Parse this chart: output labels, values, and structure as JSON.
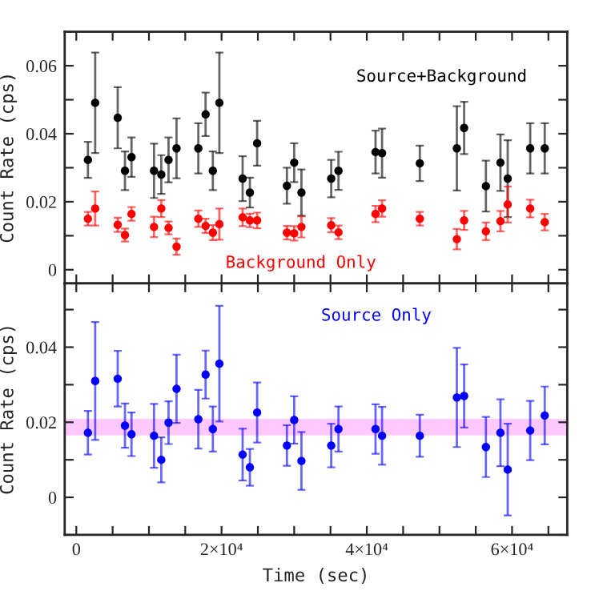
{
  "chart_data": [
    {
      "type": "scatter",
      "ylabel": "Count Rate (cps)",
      "xlim": [
        -1600,
        67600
      ],
      "ylim": [
        -0.004,
        0.07
      ],
      "x": [
        1600,
        2600,
        5700,
        6700,
        7600,
        10700,
        11700,
        12700,
        13800,
        16800,
        17800,
        18800,
        19700,
        22900,
        23900,
        24900,
        29000,
        30000,
        31000,
        35100,
        36100,
        41200,
        42100,
        47300,
        52400,
        53400,
        56400,
        58400,
        59400,
        62500,
        64500
      ],
      "xticks": [
        {
          "value": 0,
          "label": null
        },
        {
          "value": 5000,
          "label": null
        },
        {
          "value": 10000,
          "label": null
        },
        {
          "value": 15000,
          "label": null
        },
        {
          "value": 20000,
          "label": null
        },
        {
          "value": 25000,
          "label": null
        },
        {
          "value": 30000,
          "label": null
        },
        {
          "value": 35000,
          "label": null
        },
        {
          "value": 40000,
          "label": null
        },
        {
          "value": 45000,
          "label": null
        },
        {
          "value": 50000,
          "label": null
        },
        {
          "value": 55000,
          "label": null
        },
        {
          "value": 60000,
          "label": null
        },
        {
          "value": 65000,
          "label": null
        }
      ],
      "yticks": [
        0,
        {
          "value": 0.01,
          "label": null
        },
        0.02,
        {
          "value": 0.03,
          "label": null
        },
        0.04,
        {
          "value": 0.05,
          "label": null
        },
        0.06
      ],
      "tick_labels": "y",
      "marker": "circle",
      "legend": false,
      "grid": false,
      "series": [
        {
          "name": "Source+Background",
          "color": "#000000",
          "values": [
            0.0323,
            0.0491,
            0.0447,
            0.0291,
            0.0331,
            0.0291,
            0.028,
            0.0323,
            0.0357,
            0.0357,
            0.0457,
            0.0291,
            0.0491,
            0.0268,
            0.0227,
            0.0372,
            0.0247,
            0.0315,
            0.0227,
            0.0268,
            0.0291,
            0.0346,
            0.0343,
            0.0313,
            0.0357,
            0.0417,
            0.0246,
            0.0315,
            0.0268,
            0.0357,
            0.0357
          ],
          "errors": [
            0.0053,
            0.0148,
            0.009,
            0.0057,
            0.0058,
            0.008,
            0.0057,
            0.0066,
            0.0088,
            0.0074,
            0.0064,
            0.0057,
            0.0148,
            0.0066,
            0.0044,
            0.0066,
            0.0053,
            0.0057,
            0.0068,
            0.0055,
            0.0056,
            0.0063,
            0.0072,
            0.0052,
            0.0124,
            0.0077,
            0.0075,
            0.0083,
            0.0113,
            0.0074,
            0.0074
          ]
        },
        {
          "name": "Background Only",
          "color": "#ff0000",
          "values": [
            0.015,
            0.018,
            0.0132,
            0.0102,
            0.0164,
            0.0126,
            0.018,
            0.0123,
            0.0068,
            0.015,
            0.0129,
            0.0109,
            0.0134,
            0.0154,
            0.0145,
            0.0145,
            0.0109,
            0.0107,
            0.0126,
            0.0131,
            0.011,
            0.0164,
            0.018,
            0.015,
            0.009,
            0.0145,
            0.0113,
            0.0143,
            0.0192,
            0.018,
            0.014
          ],
          "errors": [
            0.002,
            0.005,
            0.0021,
            0.0019,
            0.002,
            0.003,
            0.0025,
            0.0019,
            0.0024,
            0.0024,
            0.0021,
            0.0022,
            0.0046,
            0.0026,
            0.002,
            0.0023,
            0.002,
            0.0021,
            0.0031,
            0.0021,
            0.002,
            0.0024,
            0.0024,
            0.002,
            0.003,
            0.0028,
            0.0026,
            0.003,
            0.0053,
            0.0026,
            0.0024
          ]
        }
      ]
    },
    {
      "type": "scatter",
      "xlabel": "Time (sec)",
      "ylabel": "Count Rate (cps)",
      "xlim": [
        -1600,
        67600
      ],
      "ylim": [
        -0.01,
        0.057
      ],
      "x": [
        1600,
        2600,
        5700,
        6700,
        7600,
        10700,
        11700,
        12700,
        13800,
        16800,
        17800,
        18800,
        19700,
        22900,
        23900,
        24900,
        29000,
        30000,
        31000,
        35100,
        36100,
        41200,
        42100,
        47300,
        52400,
        53400,
        56400,
        58400,
        59400,
        62500,
        64500
      ],
      "xticks": [
        0,
        {
          "value": 5000,
          "label": null
        },
        {
          "value": 10000,
          "label": null
        },
        {
          "value": 15000,
          "label": null
        },
        {
          "value": 20000,
          "label": "2×10⁴"
        },
        {
          "value": 25000,
          "label": null
        },
        {
          "value": 30000,
          "label": null
        },
        {
          "value": 35000,
          "label": null
        },
        {
          "value": 40000,
          "label": "4×10⁴"
        },
        {
          "value": 45000,
          "label": null
        },
        {
          "value": 50000,
          "label": null
        },
        {
          "value": 55000,
          "label": null
        },
        {
          "value": 60000,
          "label": "6×10⁴"
        },
        {
          "value": 65000,
          "label": null
        }
      ],
      "yticks": [
        {
          "value": -0.01,
          "label": null
        },
        0,
        {
          "value": 0.01,
          "label": null
        },
        0.02,
        {
          "value": 0.03,
          "label": null
        },
        0.04,
        {
          "value": 0.05,
          "label": null
        }
      ],
      "marker": "circle",
      "legend": false,
      "grid": false,
      "bands": [
        {
          "axis": "y",
          "from": 0.0165,
          "to": 0.0209,
          "color": "#ff66ff"
        }
      ],
      "series": [
        {
          "name": "Source Only",
          "color": "#0000ff",
          "values": [
            0.0172,
            0.031,
            0.0316,
            0.0191,
            0.0168,
            0.0164,
            0.01,
            0.0199,
            0.0289,
            0.0208,
            0.0327,
            0.0182,
            0.0356,
            0.0114,
            0.008,
            0.0226,
            0.0138,
            0.0206,
            0.0097,
            0.0138,
            0.0182,
            0.0182,
            0.0164,
            0.0164,
            0.0266,
            0.027,
            0.0134,
            0.0172,
            0.0074,
            0.0178,
            0.0218
          ],
          "errors": [
            0.0058,
            0.0157,
            0.0074,
            0.0059,
            0.0058,
            0.0085,
            0.006,
            0.0057,
            0.0091,
            0.0078,
            0.0064,
            0.006,
            0.0154,
            0.0069,
            0.0049,
            0.008,
            0.0054,
            0.0063,
            0.0077,
            0.0058,
            0.006,
            0.0066,
            0.0077,
            0.0056,
            0.0132,
            0.0084,
            0.008,
            0.0089,
            0.0122,
            0.0079,
            0.0077
          ]
        }
      ]
    }
  ]
}
